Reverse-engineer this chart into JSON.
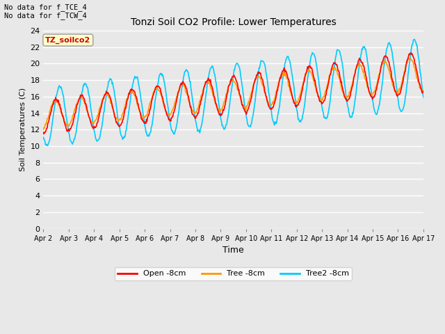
{
  "title": "Tonzi Soil CO2 Profile: Lower Temperatures",
  "ylabel": "Soil Temperatures (C)",
  "xlabel": "Time",
  "top_note": "No data for f_TCE_4\nNo data for f_TCW_4",
  "inner_label": "TZ_soilco2",
  "inner_label_color": "#cc0000",
  "inner_label_bg": "#ffffcc",
  "inner_label_border": "#aaaaaa",
  "ylim": [
    0,
    24
  ],
  "yticks": [
    0,
    2,
    4,
    6,
    8,
    10,
    12,
    14,
    16,
    18,
    20,
    22,
    24
  ],
  "xtick_labels": [
    "Apr 2",
    "Apr 3",
    "Apr 4",
    "Apr 5",
    "Apr 6",
    "Apr 7",
    "Apr 8",
    "Apr 9",
    "Apr 10",
    "Apr 11",
    "Apr 12",
    "Apr 13",
    "Apr 14",
    "Apr 15",
    "Apr 16",
    "Apr 17"
  ],
  "legend_entries": [
    "Open -8cm",
    "Tree -8cm",
    "Tree2 -8cm"
  ],
  "legend_colors": [
    "#ff0000",
    "#ff9900",
    "#00ccff"
  ],
  "bg_color": "#e8e8e8",
  "plot_bg": "#e8e8e8",
  "grid_color": "#ffffff",
  "line_width": 1.2
}
